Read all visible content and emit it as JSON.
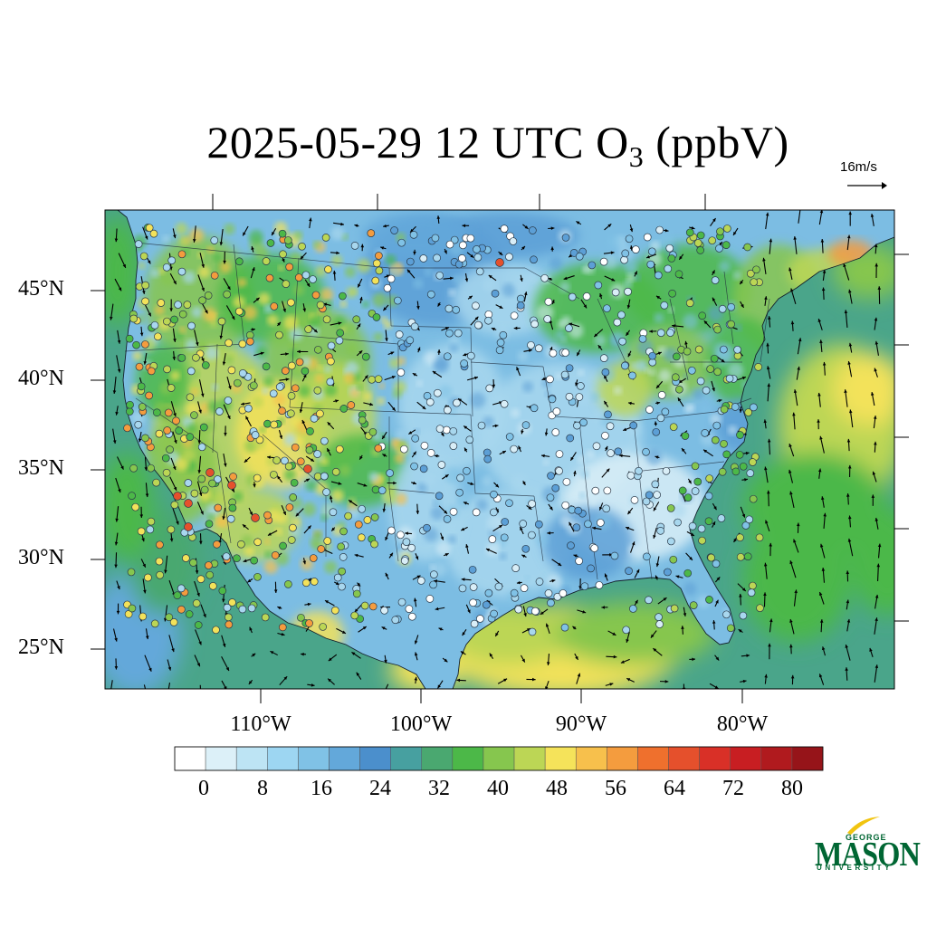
{
  "title": {
    "prefix": "2025-05-29 12 UTC O",
    "subscript": "3",
    "suffix": " (ppbV)"
  },
  "wind_reference": {
    "label": "16m/s"
  },
  "latitude_labels": [
    "45°N",
    "40°N",
    "35°N",
    "30°N",
    "25°N"
  ],
  "longitude_labels": [
    "110°W",
    "100°W",
    "90°W",
    "80°W"
  ],
  "colorbar": {
    "tick_labels": [
      "0",
      "8",
      "16",
      "24",
      "32",
      "40",
      "48",
      "56",
      "64",
      "72",
      "80"
    ],
    "colors": [
      "#ffffff",
      "#dcf0f8",
      "#bde4f4",
      "#9dd6f2",
      "#80c2e6",
      "#63a8da",
      "#4b8fcc",
      "#47a0a0",
      "#4aa870",
      "#4cb848",
      "#86c64e",
      "#bcd655",
      "#f5e35a",
      "#f7c04c",
      "#f49c3e",
      "#ef702d",
      "#e5502c",
      "#d93027",
      "#c81e22",
      "#b01a1e",
      "#961419"
    ]
  },
  "logo": {
    "top": "GEORGE",
    "main": "MASON",
    "bottom": "UNIVERSITY"
  },
  "map_colors": {
    "ocean": "#4aa58a",
    "land_base": "#7cbde3",
    "low": "#a8d7ee",
    "very_low": "#d9eef7",
    "mid_blue": "#5c9fd6",
    "green": "#4db848",
    "light_green": "#8cc64f",
    "yellow": "#f3e25a",
    "orange": "#f49c3e",
    "red": "#e5502c"
  }
}
